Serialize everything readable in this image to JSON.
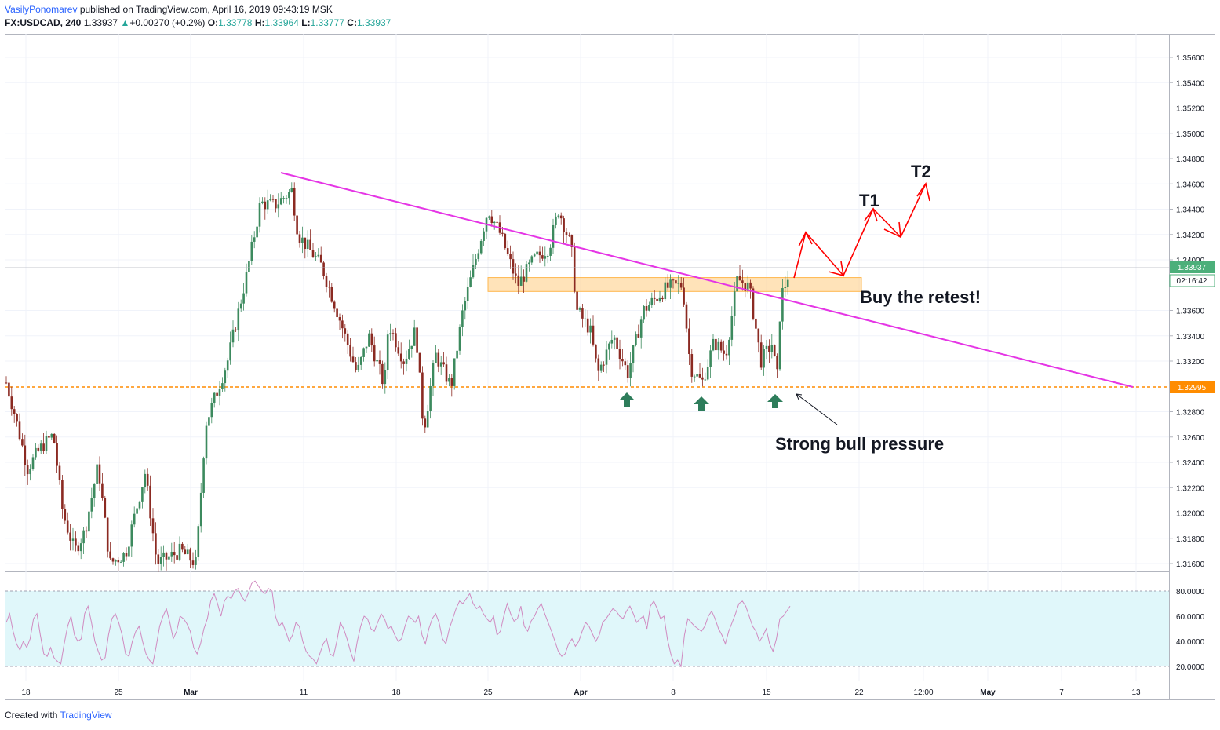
{
  "header": {
    "author": "VasilyPonomarev",
    "published": "published on TradingView.com, April 16, 2019 09:43:19 MSK",
    "symbol": "FX:USDCAD, 240",
    "last": "1.33937",
    "change_arrow": "▲",
    "change": "+0.00270 (+0.2%)",
    "o_label": "O:",
    "o": "1.33778",
    "h_label": "H:",
    "h": "1.33964",
    "l_label": "L:",
    "l": "1.33777",
    "c_label": "C:",
    "c": "1.33937"
  },
  "footer": {
    "created_with": "Created with",
    "brand": "TradingView"
  },
  "colors": {
    "bull": "#3c8a5e",
    "bear": "#8b2a22",
    "trendline": "#e535e5",
    "support": "#ff8c00",
    "zone": "#ffcc80",
    "arrows": "#ff0000",
    "markers": "#2e7d5b",
    "rsi": "#d08ac0",
    "rsi_bg": "#e0f7fa",
    "price_badge": "#4caf7a",
    "support_badge": "#ff8c00"
  },
  "chart_data": {
    "type": "candlestick",
    "symbol": "FX:USDCAD",
    "timeframe": "240",
    "ylim": [
      1.315,
      1.357
    ],
    "y_ticks": [
      "1.35600",
      "1.35400",
      "1.35200",
      "1.35000",
      "1.34800",
      "1.34600",
      "1.34400",
      "1.34200",
      "1.34000",
      "1.33600",
      "1.33400",
      "1.33200",
      "1.32800",
      "1.32600",
      "1.32400",
      "1.32200",
      "1.32000",
      "1.31800",
      "1.31600"
    ],
    "x_ticks": [
      "18",
      "25",
      "Mar",
      "11",
      "18",
      "25",
      "Apr",
      "8",
      "15",
      "22",
      "12:00",
      "May",
      "7",
      "13"
    ],
    "current_price": "1.33937",
    "countdown": "02:16:42",
    "support_level": "1.32995",
    "support_value": 1.32995,
    "trendline": {
      "start": [
        "Mar 10",
        1.3469
      ],
      "end": [
        "May 13",
        1.33
      ]
    },
    "resistance_zone": [
      1.3375,
      1.3386
    ],
    "annotations": {
      "t1": "T1",
      "t2": "T2",
      "buy": "Buy the retest!",
      "pressure": "Strong bull pressure"
    },
    "rsi": {
      "levels": [
        "80.0000",
        "60.0000",
        "40.0000",
        "20.0000"
      ],
      "upper": 80,
      "lower": 20,
      "values": [
        55,
        62,
        48,
        38,
        33,
        40,
        35,
        42,
        58,
        62,
        45,
        30,
        28,
        35,
        27,
        24,
        22,
        38,
        52,
        60,
        45,
        40,
        42,
        62,
        68,
        55,
        40,
        32,
        25,
        27,
        45,
        58,
        62,
        55,
        45,
        30,
        28,
        40,
        48,
        52,
        40,
        30,
        25,
        22,
        36,
        52,
        60,
        66,
        55,
        42,
        48,
        60,
        58,
        54,
        48,
        35,
        30,
        38,
        50,
        58,
        72,
        78,
        70,
        60,
        72,
        76,
        74,
        80,
        82,
        76,
        72,
        78,
        86,
        88,
        84,
        80,
        78,
        82,
        80,
        60,
        52,
        55,
        48,
        40,
        45,
        55,
        52,
        40,
        32,
        28,
        26,
        22,
        30,
        38,
        42,
        30,
        28,
        40,
        55,
        50,
        42,
        32,
        24,
        40,
        52,
        60,
        58,
        50,
        48,
        55,
        62,
        58,
        50,
        52,
        45,
        40,
        42,
        52,
        60,
        58,
        55,
        60,
        45,
        38,
        50,
        58,
        62,
        55,
        42,
        38,
        50,
        58,
        66,
        72,
        70,
        74,
        78,
        70,
        66,
        68,
        62,
        58,
        55,
        60,
        45,
        48,
        60,
        70,
        62,
        56,
        58,
        68,
        52,
        48,
        56,
        60,
        66,
        70,
        62,
        55,
        48,
        40,
        32,
        28,
        30,
        38,
        42,
        36,
        40,
        48,
        55,
        52,
        46,
        40,
        45,
        55,
        58,
        62,
        66,
        64,
        60,
        58,
        64,
        68,
        62,
        55,
        58,
        60,
        50,
        68,
        72,
        66,
        58,
        60,
        42,
        30,
        22,
        25,
        20,
        45,
        58,
        55,
        52,
        50,
        48,
        52,
        60,
        64,
        58,
        50,
        45,
        38,
        48,
        55,
        62,
        70,
        72,
        68,
        60,
        52,
        48,
        40,
        44,
        50,
        38,
        32,
        42,
        58,
        60,
        64,
        68
      ]
    }
  }
}
